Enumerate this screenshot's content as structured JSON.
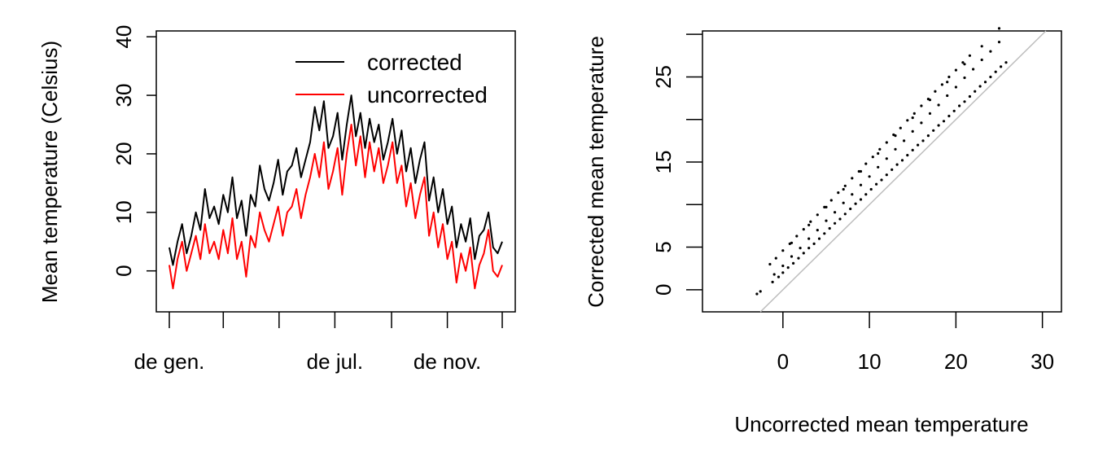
{
  "chart_data": [
    {
      "type": "line",
      "title": "",
      "xlabel": "",
      "ylabel": "Mean temperature (Celsius)",
      "x_range_days": [
        1,
        365
      ],
      "ylim": [
        -7,
        41
      ],
      "y_ticks": [
        0,
        10,
        20,
        30,
        40
      ],
      "y_tick_labels": [
        "0",
        "10",
        "20",
        "30",
        "40"
      ],
      "x_tick_days": [
        1,
        60,
        121,
        182,
        244,
        305,
        365
      ],
      "x_labels": [
        {
          "day": 1,
          "text": "de gen."
        },
        {
          "day": 182,
          "text": "de jul."
        },
        {
          "day": 305,
          "text": "de nov."
        }
      ],
      "grid": false,
      "legend": {
        "position": "top-right",
        "entries": [
          {
            "label": "corrected",
            "color": "#000000"
          },
          {
            "label": "uncorrected",
            "color": "#ff0000"
          }
        ]
      },
      "series": [
        {
          "name": "corrected",
          "color": "#000000",
          "x": [
            1,
            5,
            10,
            15,
            20,
            25,
            30,
            35,
            40,
            45,
            50,
            55,
            60,
            65,
            70,
            75,
            80,
            85,
            90,
            95,
            100,
            105,
            110,
            115,
            120,
            125,
            130,
            135,
            140,
            145,
            150,
            155,
            160,
            165,
            170,
            175,
            180,
            185,
            190,
            195,
            200,
            205,
            210,
            215,
            220,
            225,
            230,
            235,
            240,
            245,
            250,
            255,
            260,
            265,
            270,
            275,
            280,
            285,
            290,
            295,
            300,
            305,
            310,
            315,
            320,
            325,
            330,
            335,
            340,
            345,
            350,
            355,
            360,
            365
          ],
          "y": [
            4,
            1,
            5,
            8,
            3,
            6,
            10,
            7,
            14,
            9,
            11,
            8,
            13,
            10,
            16,
            9,
            12,
            6,
            13,
            11,
            18,
            14,
            12,
            15,
            19,
            13,
            17,
            18,
            21,
            16,
            19,
            22,
            28,
            24,
            29,
            21,
            23,
            27,
            19,
            25,
            30,
            23,
            27,
            21,
            26,
            22,
            25,
            19,
            22,
            26,
            20,
            24,
            17,
            21,
            15,
            19,
            22,
            12,
            16,
            10,
            14,
            8,
            11,
            4,
            8,
            5,
            9,
            2,
            6,
            7,
            10,
            4,
            3,
            5
          ]
        },
        {
          "name": "uncorrected",
          "color": "#ff0000",
          "x": [
            1,
            5,
            10,
            15,
            20,
            25,
            30,
            35,
            40,
            45,
            50,
            55,
            60,
            65,
            70,
            75,
            80,
            85,
            90,
            95,
            100,
            105,
            110,
            115,
            120,
            125,
            130,
            135,
            140,
            145,
            150,
            155,
            160,
            165,
            170,
            175,
            180,
            185,
            190,
            195,
            200,
            205,
            210,
            215,
            220,
            225,
            230,
            235,
            240,
            245,
            250,
            255,
            260,
            265,
            270,
            275,
            280,
            285,
            290,
            295,
            300,
            305,
            310,
            315,
            320,
            325,
            330,
            335,
            340,
            345,
            350,
            355,
            360,
            365
          ],
          "y": [
            1,
            -3,
            2,
            5,
            0,
            3,
            6,
            2,
            8,
            3,
            5,
            2,
            7,
            3,
            9,
            2,
            5,
            -1,
            6,
            4,
            10,
            7,
            5,
            8,
            11,
            6,
            10,
            11,
            14,
            9,
            13,
            16,
            20,
            16,
            22,
            14,
            17,
            21,
            13,
            20,
            25,
            18,
            23,
            16,
            22,
            17,
            21,
            15,
            18,
            22,
            15,
            18,
            11,
            15,
            9,
            13,
            16,
            6,
            10,
            4,
            8,
            2,
            5,
            -2,
            3,
            0,
            4,
            -3,
            1,
            3,
            7,
            0,
            -1,
            1
          ]
        }
      ]
    },
    {
      "type": "scatter",
      "title": "",
      "xlabel": "Uncorrected mean temperature",
      "ylabel": "Corrected mean temperature",
      "xlim": [
        -9.3,
        32.2
      ],
      "ylim": [
        -2.6,
        30.4
      ],
      "x_ticks": [
        0,
        10,
        20,
        30
      ],
      "y_ticks": [
        0,
        5,
        10,
        15,
        20,
        25,
        30
      ],
      "y_tick_labels": [
        "0",
        "5",
        "",
        "15",
        "",
        "25",
        ""
      ],
      "grid": false,
      "reference_line": {
        "type": "identity",
        "color": "#bebebe"
      },
      "series": [
        {
          "name": "",
          "color": "#000000",
          "x": [
            -3,
            -2.6,
            -1.2,
            -0.5,
            0,
            0.6,
            1.2,
            1.8,
            2.4,
            3,
            3.6,
            4.2,
            4.8,
            5.4,
            6,
            6.6,
            7.2,
            7.8,
            8.4,
            9,
            9.6,
            10.2,
            10.8,
            11.4,
            12,
            12.6,
            13.2,
            13.8,
            14.4,
            15,
            15.6,
            16.2,
            16.8,
            17.4,
            18,
            18.6,
            19.2,
            19.8,
            20.4,
            21,
            21.6,
            22.2,
            22.8,
            23.4,
            24,
            24.6,
            25.2,
            25.8,
            -1.5,
            -0.8,
            0,
            0.8,
            1.6,
            2.4,
            3.2,
            4,
            4.8,
            5.6,
            6.4,
            7.2,
            8,
            8.8,
            9.6,
            10.4,
            11.2,
            12,
            12.8,
            13.6,
            14.4,
            15.2,
            16,
            16.8,
            17.6,
            18.4,
            19.2,
            20,
            20.8,
            21.6,
            -1,
            0,
            1,
            2,
            3,
            4,
            5,
            6,
            7,
            8,
            9,
            10,
            11,
            12,
            13,
            14,
            15,
            16,
            17,
            18,
            19,
            20,
            21,
            22,
            23,
            24,
            25,
            1,
            3,
            5,
            7,
            9,
            11,
            13,
            15,
            17,
            19,
            21,
            23,
            25
          ],
          "y": [
            -0.5,
            -0.2,
            0.9,
            1.5,
            2,
            2.6,
            3.1,
            3.7,
            4.3,
            4.9,
            5.4,
            6,
            6.6,
            7.2,
            7.8,
            8.3,
            8.9,
            9.5,
            10.1,
            10.6,
            11.2,
            11.8,
            12.4,
            12.9,
            13.5,
            14.1,
            14.7,
            15.2,
            15.8,
            16.4,
            17,
            17.5,
            18.1,
            18.7,
            19.3,
            19.8,
            20.4,
            21,
            21.6,
            22.1,
            22.7,
            23.3,
            23.9,
            24.4,
            25,
            25.6,
            26.2,
            26.7,
            3,
            3.7,
            4.6,
            5.4,
            6.3,
            7.1,
            8,
            8.8,
            9.7,
            10.5,
            11.4,
            12.2,
            13.1,
            13.9,
            14.8,
            15.6,
            16.5,
            17.3,
            18.2,
            19,
            19.9,
            20.7,
            21.6,
            22.4,
            23.3,
            24.1,
            25,
            25.8,
            26.7,
            27.5,
            1.8,
            2.8,
            3.9,
            4.9,
            6,
            7,
            8.1,
            9.1,
            10.2,
            11.2,
            12.3,
            13.3,
            14.4,
            15.4,
            16.5,
            17.5,
            18.6,
            19.6,
            20.7,
            21.7,
            22.8,
            23.8,
            24.9,
            25.9,
            27,
            28,
            29.1,
            5.5,
            7.6,
            9.7,
            11.8,
            13.9,
            16,
            18.1,
            20.2,
            22.3,
            24.4,
            26.5,
            28.6,
            30.7
          ]
        }
      ]
    }
  ]
}
